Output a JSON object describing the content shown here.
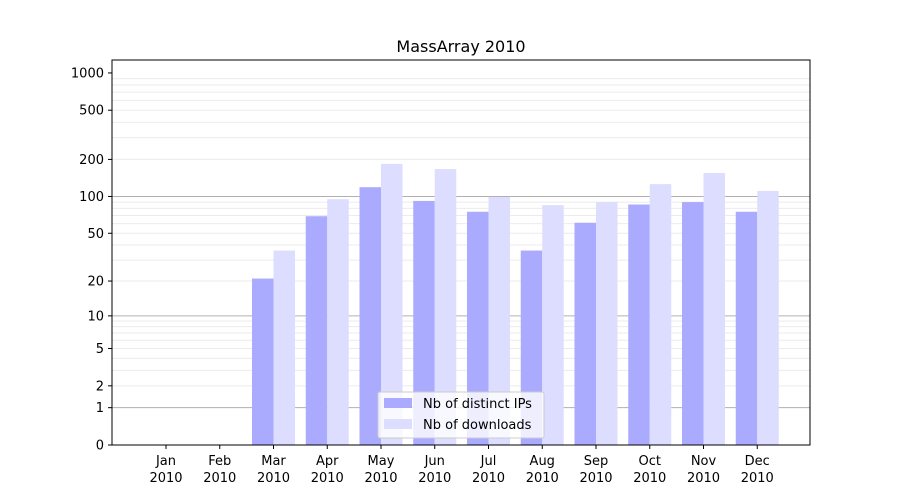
{
  "chart_data": {
    "type": "bar",
    "title": "MassArray 2010",
    "xlabel": "",
    "ylabel": "",
    "yscale": "log(1+y)",
    "ylim": [
      0,
      1300
    ],
    "yticks": [
      0,
      1,
      2,
      5,
      10,
      20,
      50,
      100,
      200,
      500,
      1000
    ],
    "ytick_labels": [
      "0",
      "1",
      "2",
      "5",
      "10",
      "20",
      "50",
      "100",
      "200",
      "500",
      "1000"
    ],
    "major_grid": [
      1,
      10,
      100
    ],
    "categories": [
      [
        "Jan",
        "2010"
      ],
      [
        "Feb",
        "2010"
      ],
      [
        "Mar",
        "2010"
      ],
      [
        "Apr",
        "2010"
      ],
      [
        "May",
        "2010"
      ],
      [
        "Jun",
        "2010"
      ],
      [
        "Jul",
        "2010"
      ],
      [
        "Aug",
        "2010"
      ],
      [
        "Sep",
        "2010"
      ],
      [
        "Oct",
        "2010"
      ],
      [
        "Nov",
        "2010"
      ],
      [
        "Dec",
        "2010"
      ]
    ],
    "series": [
      {
        "name": "Nb of distinct IPs",
        "color": "#aaaaff",
        "values": [
          0,
          0,
          21,
          69,
          119,
          92,
          75,
          36,
          61,
          86,
          90,
          75
        ]
      },
      {
        "name": "Nb of downloads",
        "color": "#ddddff",
        "values": [
          0,
          0,
          36,
          95,
          184,
          167,
          99,
          85,
          90,
          126,
          155,
          111
        ]
      }
    ],
    "legend_position": "lower-center"
  }
}
